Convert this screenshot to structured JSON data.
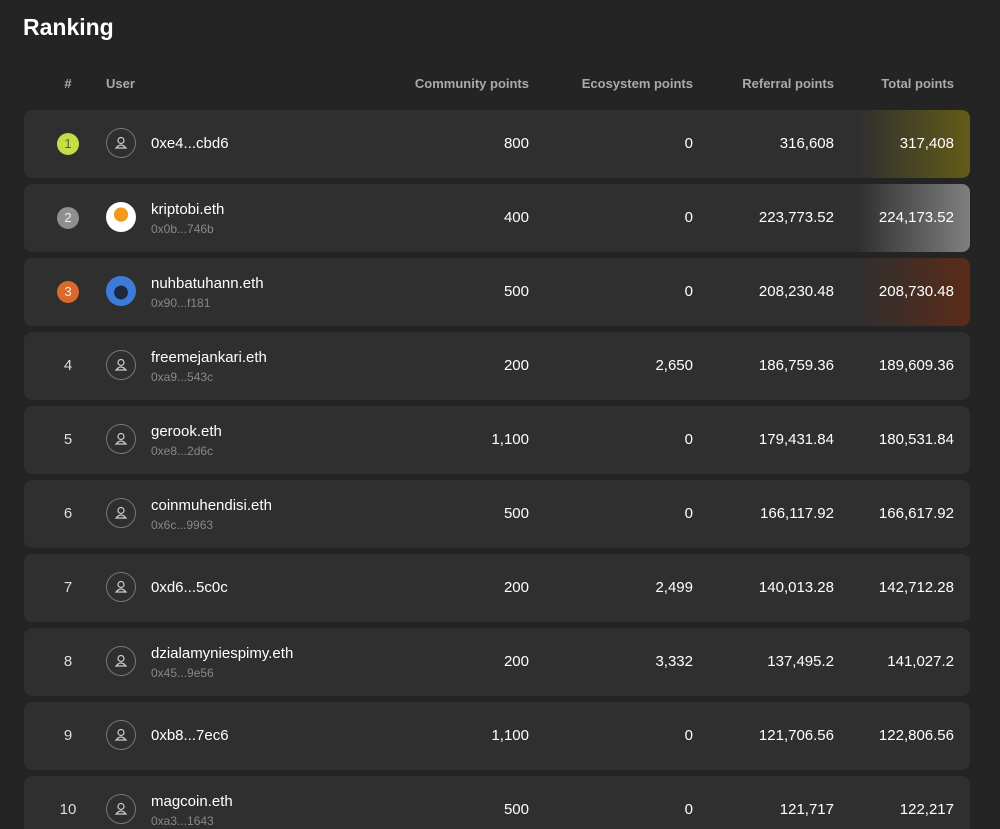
{
  "header": {
    "title": "Ranking"
  },
  "table": {
    "columns": [
      "#",
      "User",
      "Community points",
      "Ecosystem points",
      "Referral points",
      "Total points"
    ],
    "rows": [
      {
        "rank": "1",
        "name": "0xe4...cbd6",
        "community": "800",
        "ecosystem": "0",
        "referral": "316,608",
        "total": "317,408"
      },
      {
        "rank": "2",
        "name": "kriptobi.eth",
        "address": "0x0b...746b",
        "community": "400",
        "ecosystem": "0",
        "referral": "223,773.52",
        "total": "224,173.52"
      },
      {
        "rank": "3",
        "name": "nuhbatuhann.eth",
        "address": "0x90...f181",
        "community": "500",
        "ecosystem": "0",
        "referral": "208,230.48",
        "total": "208,730.48"
      },
      {
        "rank": "4",
        "name": "freemejankari.eth",
        "address": "0xa9...543c",
        "community": "200",
        "ecosystem": "2,650",
        "referral": "186,759.36",
        "total": "189,609.36"
      },
      {
        "rank": "5",
        "name": "gerook.eth",
        "address": "0xe8...2d6c",
        "community": "1,100",
        "ecosystem": "0",
        "referral": "179,431.84",
        "total": "180,531.84"
      },
      {
        "rank": "6",
        "name": "coinmuhendisi.eth",
        "address": "0x6c...9963",
        "community": "500",
        "ecosystem": "0",
        "referral": "166,117.92",
        "total": "166,617.92"
      },
      {
        "rank": "7",
        "name": "0xd6...5c0c",
        "community": "200",
        "ecosystem": "2,499",
        "referral": "140,013.28",
        "total": "142,712.28"
      },
      {
        "rank": "8",
        "name": "dzialamyniespimy.eth",
        "address": "0x45...9e56",
        "community": "200",
        "ecosystem": "3,332",
        "referral": "137,495.2",
        "total": "141,027.2"
      },
      {
        "rank": "9",
        "name": "0xb8...7ec6",
        "community": "1,100",
        "ecosystem": "0",
        "referral": "121,706.56",
        "total": "122,806.56"
      },
      {
        "rank": "10",
        "name": "magcoin.eth",
        "address": "0xa3...1643",
        "community": "500",
        "ecosystem": "0",
        "referral": "121,717",
        "total": "122,217"
      }
    ]
  }
}
